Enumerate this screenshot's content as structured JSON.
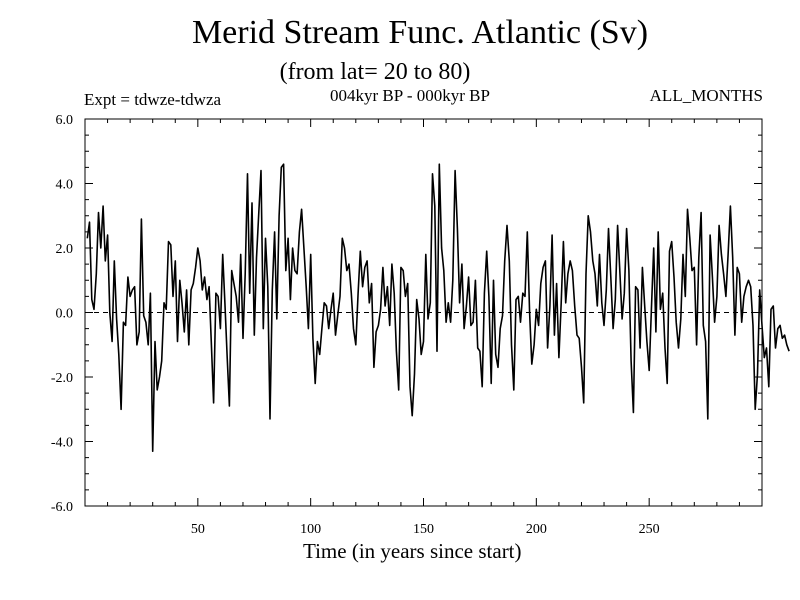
{
  "chart_data": {
    "type": "line",
    "title": "Merid Stream Func. Atlantic (Sv)",
    "subtitle": "(from lat= 20 to 80)",
    "annotation_left": "Expt = tdwze-tdwza",
    "annotation_center": "004kyr BP - 000kyr BP",
    "annotation_right": "ALL_MONTHS",
    "xlabel": "Time (in years since start)",
    "ylabel": "",
    "xlim": [
      0,
      300
    ],
    "ylim": [
      -6,
      6
    ],
    "x_ticks": [
      50,
      100,
      150,
      200,
      250
    ],
    "x_tick_labels": [
      "50",
      "100",
      "150",
      "200",
      "250"
    ],
    "y_ticks": [
      6,
      4,
      2,
      0,
      -2,
      -4,
      -6
    ],
    "y_tick_labels": [
      "6.0",
      "4.0",
      "2.0",
      "0.0",
      "-2.0",
      "-4.0",
      "-6.0"
    ],
    "zero_line": "dashed",
    "grid": false,
    "series": [
      {
        "x_start": 1,
        "x_step": 1,
        "values": [
          2.3,
          2.8,
          0.4,
          0.1,
          1.2,
          3.1,
          2.0,
          3.3,
          1.6,
          2.4,
          0.0,
          -0.9,
          1.6,
          -0.2,
          -1.3,
          -3.0,
          -0.3,
          -0.4,
          1.1,
          0.5,
          0.7,
          0.8,
          -1.0,
          -0.6,
          2.9,
          -0.1,
          -0.3,
          -1.0,
          0.6,
          -4.3,
          -0.9,
          -2.4,
          -2.0,
          -1.5,
          0.3,
          0.1,
          2.2,
          2.1,
          0.5,
          1.6,
          -0.9,
          1.0,
          0.3,
          -0.6,
          0.7,
          -1.0,
          0.7,
          0.9,
          1.4,
          2.0,
          1.6,
          0.7,
          1.1,
          0.4,
          0.8,
          -1.0,
          -2.8,
          0.6,
          0.5,
          -0.5,
          1.8,
          0.3,
          -1.4,
          -2.9,
          1.3,
          0.9,
          0.5,
          -0.3,
          1.8,
          -0.8,
          1.2,
          4.3,
          0.6,
          3.4,
          -0.7,
          1.7,
          3.1,
          4.4,
          -0.5,
          2.3,
          0.8,
          -3.3,
          0.7,
          2.5,
          -0.2,
          3.0,
          4.5,
          4.6,
          1.3,
          2.3,
          0.4,
          2.0,
          1.3,
          1.2,
          2.5,
          3.2,
          2.0,
          0.8,
          -0.5,
          1.8,
          -0.8,
          -2.2,
          -0.9,
          -1.3,
          -0.5,
          0.3,
          0.2,
          -0.5,
          0.1,
          0.6,
          -0.7,
          -0.1,
          0.5,
          2.3,
          2.0,
          1.3,
          1.5,
          0.6,
          -0.5,
          -1.0,
          0.6,
          1.9,
          0.8,
          1.4,
          1.6,
          0.3,
          0.9,
          -1.7,
          -0.6,
          -0.4,
          0.1,
          1.4,
          0.2,
          0.8,
          -0.4,
          1.5,
          0.6,
          -1.2,
          -2.4,
          1.4,
          1.3,
          0.5,
          0.9,
          -2.3,
          -3.2,
          -1.9,
          0.4,
          -0.2,
          -1.3,
          -0.9,
          1.8,
          -0.2,
          0.3,
          4.3,
          3.3,
          -1.2,
          4.6,
          2.0,
          1.3,
          -0.3,
          0.3,
          -0.3,
          1.0,
          4.4,
          2.6,
          0.3,
          1.5,
          -0.5,
          0.2,
          1.1,
          -0.4,
          -0.3,
          1.0,
          -1.1,
          -1.2,
          -2.3,
          0.6,
          1.9,
          0.5,
          -2.2,
          1.0,
          -1.3,
          -1.7,
          -0.5,
          -0.1,
          1.6,
          2.7,
          1.6,
          -1.0,
          -2.4,
          0.4,
          0.5,
          -0.3,
          0.6,
          0.5,
          2.5,
          0.0,
          -1.6,
          -1.0,
          0.1,
          -0.4,
          0.9,
          1.4,
          1.6,
          -1.1,
          0.2,
          2.4,
          -0.7,
          0.9,
          -1.4,
          0.3,
          2.2,
          0.3,
          1.2,
          1.6,
          1.3,
          0.2,
          -0.7,
          -0.8,
          -1.7,
          -2.8,
          1.2,
          3.0,
          2.5,
          1.6,
          1.2,
          0.2,
          1.8,
          0.3,
          -0.4,
          0.7,
          2.6,
          1.1,
          -0.5,
          0.4,
          2.7,
          1.3,
          -0.2,
          0.6,
          2.6,
          1.3,
          -1.5,
          -3.1,
          0.8,
          0.7,
          -1.1,
          1.4,
          0.2,
          -0.9,
          -1.8,
          0.1,
          2.0,
          -0.6,
          2.5,
          0.1,
          0.6,
          -1.1,
          -2.2,
          1.9,
          2.2,
          1.1,
          -0.3,
          -1.1,
          -0.2,
          1.8,
          0.5,
          3.2,
          2.3,
          1.3,
          1.4,
          -1.0,
          1.7,
          3.1,
          -0.4,
          -0.9,
          -3.3,
          2.4,
          1.1,
          -0.3,
          0.5,
          2.7,
          1.8,
          1.2,
          0.5,
          1.8,
          3.3,
          1.7,
          -0.7,
          1.4,
          1.2,
          -0.3,
          0.5,
          0.8,
          1.0,
          0.8,
          -0.4,
          -3.0,
          -1.9,
          0.7,
          -0.4,
          -1.4,
          -1.1,
          -2.3,
          0.1,
          0.2,
          -1.1,
          -0.5,
          -0.4,
          -0.8,
          -0.7,
          -1.0,
          -1.2
        ]
      }
    ]
  }
}
